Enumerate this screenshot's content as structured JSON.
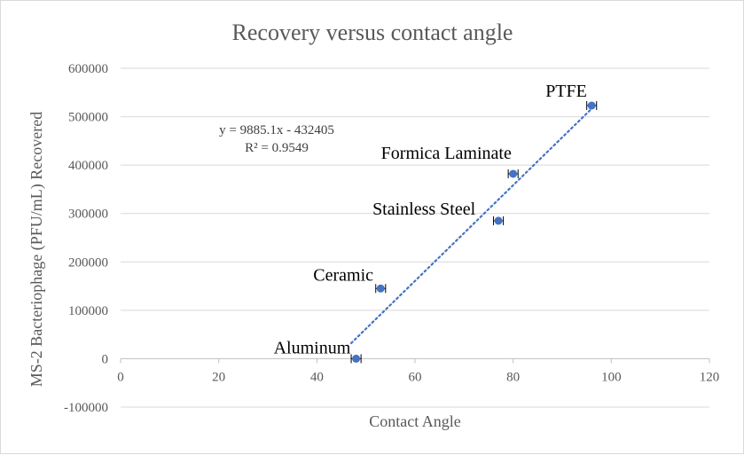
{
  "chart_data": {
    "type": "scatter",
    "title": "Recovery versus contact angle",
    "xlabel": "Contact Angle",
    "ylabel": "MS-2 Bacteriophage (PFU/mL) Recovered",
    "xlim": [
      0,
      120
    ],
    "ylim": [
      -100000,
      600000
    ],
    "x_ticks": [
      0,
      20,
      40,
      60,
      80,
      100,
      120
    ],
    "y_ticks": [
      -100000,
      0,
      100000,
      200000,
      300000,
      400000,
      500000,
      600000
    ],
    "grid": "horizontal",
    "points": [
      {
        "label": "Aluminum",
        "x": 48,
        "y": 0,
        "xerr": 1
      },
      {
        "label": "Ceramic",
        "x": 53,
        "y": 145000,
        "xerr": 1
      },
      {
        "label": "Stainless Steel",
        "x": 77,
        "y": 285000,
        "xerr": 1
      },
      {
        "label": "Formica Laminate",
        "x": 80,
        "y": 382000,
        "xerr": 1
      },
      {
        "label": "PTFE",
        "x": 96,
        "y": 523000,
        "xerr": 1
      }
    ],
    "trendline": {
      "slope": 9885.1,
      "intercept": -432405,
      "x_range": [
        47,
        96
      ],
      "equation": "y = 9885.1x - 432405",
      "r_squared": "R² = 0.9549"
    },
    "colors": {
      "marker": "#4472c4",
      "trend": "#4472c4",
      "grid": "#d9d9d9",
      "text": "#595959"
    }
  }
}
